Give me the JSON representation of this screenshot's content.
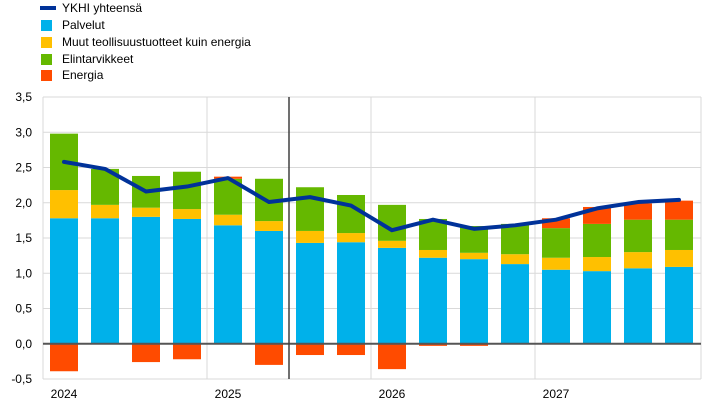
{
  "chart_data": {
    "type": "bar",
    "stacked": true,
    "categories": [
      "2024Q1",
      "2024Q2",
      "2024Q3",
      "2024Q4",
      "2025Q1",
      "2025Q2",
      "2025Q3",
      "2025Q4",
      "2026Q1",
      "2026Q2",
      "2026Q3",
      "2026Q4",
      "2027Q1",
      "2027Q2",
      "2027Q3",
      "2027Q4"
    ],
    "x_tick_labels": [
      {
        "label": "2024",
        "index": 0
      },
      {
        "label": "2025",
        "index": 4
      },
      {
        "label": "2026",
        "index": 8
      },
      {
        "label": "2027",
        "index": 12
      }
    ],
    "y_tick_labels": [
      "-0,5",
      "0,0",
      "0,5",
      "1,0",
      "1,5",
      "2,0",
      "2,5",
      "3,0",
      "3,5"
    ],
    "ylim": [
      -0.5,
      3.5
    ],
    "grid": true,
    "legend_position": "top-left",
    "projection_divider_after_index": 5,
    "series": [
      {
        "name": "Palvelut",
        "color": "#00B1EA",
        "values": [
          1.78,
          1.78,
          1.8,
          1.77,
          1.68,
          1.6,
          1.43,
          1.44,
          1.36,
          1.22,
          1.2,
          1.13,
          1.05,
          1.03,
          1.07,
          1.09
        ]
      },
      {
        "name": "Muut teollisuustuotteet kuin energia",
        "color": "#FFC000",
        "values": [
          0.4,
          0.19,
          0.13,
          0.14,
          0.15,
          0.14,
          0.17,
          0.13,
          0.1,
          0.11,
          0.09,
          0.14,
          0.17,
          0.2,
          0.23,
          0.24
        ]
      },
      {
        "name": "Elintarvikkeet",
        "color": "#65B800",
        "values": [
          0.8,
          0.51,
          0.45,
          0.53,
          0.51,
          0.6,
          0.62,
          0.54,
          0.51,
          0.44,
          0.38,
          0.43,
          0.42,
          0.47,
          0.46,
          0.43
        ]
      },
      {
        "name": "Energia",
        "color": "#FF4B00",
        "values": [
          -0.39,
          0,
          -0.26,
          -0.22,
          0.03,
          -0.3,
          -0.16,
          -0.16,
          -0.36,
          -0.03,
          -0.03,
          0,
          0.14,
          0.24,
          0.23,
          0.27
        ]
      }
    ],
    "line": {
      "name": "YKHI yhteensä",
      "color": "#003299",
      "values": [
        2.58,
        2.48,
        2.16,
        2.23,
        2.35,
        2.01,
        2.08,
        1.96,
        1.61,
        1.76,
        1.63,
        1.68,
        1.76,
        1.92,
        2.01,
        2.04
      ]
    }
  }
}
